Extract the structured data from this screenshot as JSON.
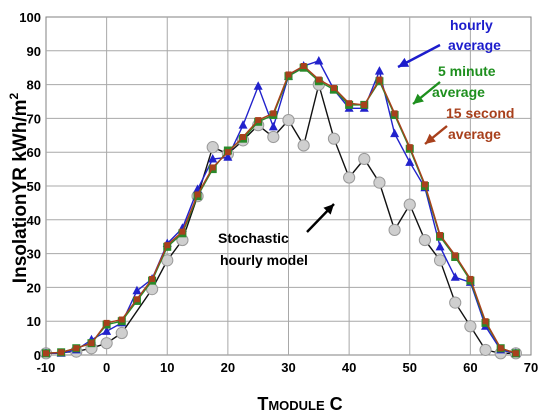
{
  "chart_data": {
    "type": "line",
    "title": "",
    "xlabel": "TMODULE C",
    "xlabel_parts": {
      "main": "T",
      "sub": "MODULE",
      "unit": " C"
    },
    "ylabel": "InsolationYR kWh/m²",
    "ylabel_parts": {
      "main": "InsolationYR kWh/m",
      "sup": "2"
    },
    "xlim": [
      -10,
      70
    ],
    "ylim": [
      0,
      100
    ],
    "xticks": [
      -10,
      0,
      10,
      20,
      30,
      40,
      50,
      60,
      70
    ],
    "yticks": [
      0,
      10,
      20,
      30,
      40,
      50,
      60,
      70,
      80,
      90,
      100
    ],
    "grid": true,
    "annotations": [
      {
        "key": "hourly",
        "lines": [
          "hourly",
          "average"
        ],
        "color": "#1c1ccc"
      },
      {
        "key": "five_min",
        "lines": [
          "5 minute",
          "average"
        ],
        "color": "#1e8f1e"
      },
      {
        "key": "fifteen_sec",
        "lines": [
          "15 second",
          "average"
        ],
        "color": "#a8401c"
      },
      {
        "key": "stochastic",
        "lines": [
          "Stochastic",
          "hourly model"
        ],
        "color": "#000000"
      }
    ],
    "series": [
      {
        "key": "hourly",
        "color": "#2222cc",
        "marker": "triangle",
        "x": [
          -10,
          -7.5,
          -5,
          -2.5,
          0,
          2.5,
          5,
          7.5,
          10,
          12.5,
          15,
          17.5,
          20,
          22.5,
          25,
          27.5,
          30,
          32.5,
          35,
          37.5,
          40,
          42.5,
          45,
          47.5,
          50,
          52.5,
          55,
          57.5,
          60,
          62.5,
          65,
          67.5
        ],
        "y": [
          0.5,
          0.5,
          1.5,
          4.5,
          7,
          9.5,
          19,
          22.5,
          33,
          37.5,
          49,
          58,
          58.5,
          68,
          79.5,
          67.5,
          82.5,
          85.5,
          87,
          78.5,
          73,
          73,
          84,
          65.5,
          57,
          49.5,
          32,
          23,
          21.5,
          8.5,
          1.5,
          0.5
        ]
      },
      {
        "key": "five_min",
        "color": "#2a8a2a",
        "marker": "square",
        "x": [
          -10,
          -7.5,
          -5,
          -2.5,
          0,
          2.5,
          5,
          7.5,
          10,
          12.5,
          15,
          17.5,
          20,
          22.5,
          25,
          27.5,
          30,
          32.5,
          35,
          37.5,
          40,
          42.5,
          45,
          47.5,
          50,
          52.5,
          55,
          57.5,
          60,
          62.5,
          65,
          67.5
        ],
        "y": [
          0.5,
          0.8,
          2,
          3.5,
          9,
          10,
          16,
          22,
          32,
          36,
          47,
          55,
          60.5,
          64,
          69,
          71,
          82.5,
          85,
          81,
          78.5,
          74,
          74,
          81,
          71,
          61,
          50,
          35,
          29,
          22,
          9.5,
          2,
          0.5
        ]
      },
      {
        "key": "fifteen_sec",
        "color": "#a8401c",
        "marker": "square",
        "x": [
          -10,
          -7.5,
          -5,
          -2.5,
          0,
          2.5,
          5,
          7.5,
          10,
          12.5,
          15,
          17.5,
          20,
          22.5,
          25,
          27.5,
          30,
          32.5,
          35,
          37.5,
          40,
          42.5,
          45,
          47.5,
          50,
          52.5,
          55,
          57.5,
          60,
          62.5,
          65,
          67.5
        ],
        "y": [
          0.5,
          0.8,
          2,
          3.5,
          9.5,
          10.5,
          16.5,
          22.5,
          32.5,
          36.5,
          47.5,
          55.5,
          60,
          64.5,
          69.5,
          71.5,
          83,
          85.5,
          81.5,
          79,
          74.5,
          74,
          81.5,
          71.5,
          61.5,
          50.5,
          35.5,
          29.5,
          22.5,
          10,
          2,
          0.5
        ]
      },
      {
        "key": "stochastic",
        "color": "#111111",
        "marker": "circle",
        "x": [
          -10,
          -5,
          -2.5,
          0,
          2.5,
          7.5,
          10,
          12.5,
          15,
          17.5,
          20,
          22.5,
          25,
          27.5,
          30,
          32.5,
          35,
          37.5,
          40,
          42.5,
          45,
          47.5,
          50,
          52.5,
          55,
          57.5,
          60,
          62.5,
          65,
          67.5
        ],
        "y": [
          0.5,
          1,
          2,
          3.5,
          6.5,
          19.5,
          28,
          34,
          47,
          61.5,
          59.5,
          63.5,
          68,
          64.5,
          69.5,
          62,
          80,
          64,
          52.5,
          58,
          51,
          37,
          44.5,
          34,
          28,
          15.5,
          8.5,
          1.5,
          0.5,
          0.5
        ]
      }
    ]
  }
}
